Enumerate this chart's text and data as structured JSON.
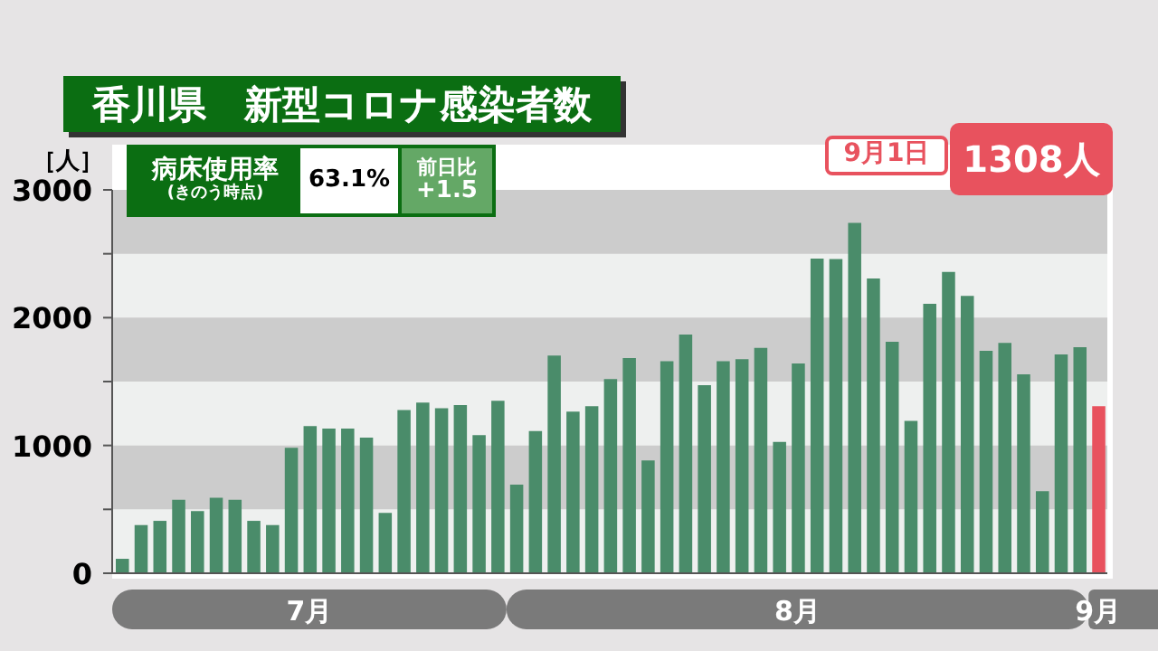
{
  "chart_data": {
    "type": "bar",
    "title": "香川県　新型コロナ感染者数",
    "ylabel": "［人］",
    "categories": [
      null,
      null,
      null,
      null,
      null,
      null,
      null,
      null,
      null,
      null,
      "7月",
      null,
      null,
      null,
      null,
      null,
      null,
      null,
      null,
      null,
      null,
      null,
      null,
      null,
      null,
      null,
      null,
      null,
      null,
      null,
      null,
      null,
      null,
      null,
      null,
      null,
      "8月",
      null,
      null,
      null,
      null,
      null,
      null,
      null,
      null,
      null,
      null,
      null,
      null,
      null,
      null,
      null,
      "9月"
    ],
    "values": [
      113,
      377,
      410,
      575,
      486,
      590,
      575,
      410,
      377,
      981,
      1151,
      1132,
      1132,
      1061,
      472,
      1278,
      1335,
      1292,
      1316,
      1080,
      1349,
      693,
      1113,
      1703,
      1264,
      1307,
      1519,
      1684,
      882,
      1660,
      1868,
      1472,
      1660,
      1675,
      1764,
      1028,
      1642,
      2462,
      2458,
      2741,
      2307,
      1811,
      1193,
      2108,
      2358,
      2170,
      1741,
      1802,
      1557,
      642,
      1712,
      1769,
      1308
    ],
    "colors": [
      "#4a8c6a",
      "#4a8c6a",
      "#4a8c6a",
      "#4a8c6a",
      "#4a8c6a",
      "#4a8c6a",
      "#4a8c6a",
      "#4a8c6a",
      "#4a8c6a",
      "#4a8c6a",
      "#4a8c6a",
      "#4a8c6a",
      "#4a8c6a",
      "#4a8c6a",
      "#4a8c6a",
      "#4a8c6a",
      "#4a8c6a",
      "#4a8c6a",
      "#4a8c6a",
      "#4a8c6a",
      "#4a8c6a",
      "#4a8c6a",
      "#4a8c6a",
      "#4a8c6a",
      "#4a8c6a",
      "#4a8c6a",
      "#4a8c6a",
      "#4a8c6a",
      "#4a8c6a",
      "#4a8c6a",
      "#4a8c6a",
      "#4a8c6a",
      "#4a8c6a",
      "#4a8c6a",
      "#4a8c6a",
      "#4a8c6a",
      "#4a8c6a",
      "#4a8c6a",
      "#4a8c6a",
      "#4a8c6a",
      "#4a8c6a",
      "#4a8c6a",
      "#4a8c6a",
      "#4a8c6a",
      "#4a8c6a",
      "#4a8c6a",
      "#4a8c6a",
      "#4a8c6a",
      "#4a8c6a",
      "#4a8c6a",
      "#4a8c6a",
      "#4a8c6a",
      "#e8525e"
    ],
    "ylim": [
      0,
      3000
    ],
    "yticks": [
      0,
      {
        "value": 500,
        "label": null
      },
      1000,
      {
        "value": 1500,
        "label": null
      },
      2000,
      {
        "value": 2500,
        "label": null
      },
      3000
    ],
    "bands": [
      {
        "axis": "y",
        "from": 500,
        "to": 1000,
        "color": "#cccccc"
      },
      {
        "axis": "y",
        "from": 1500,
        "to": 2000,
        "color": "#cccccc"
      },
      {
        "axis": "y",
        "from": 2500,
        "to": 3000,
        "color": "#cccccc"
      }
    ],
    "annotations": [
      "病床使用率",
      "(きのう時点)",
      "63.1%",
      "前日比",
      "+1.5",
      "9月1日",
      "1308人"
    ],
    "grid": false
  }
}
